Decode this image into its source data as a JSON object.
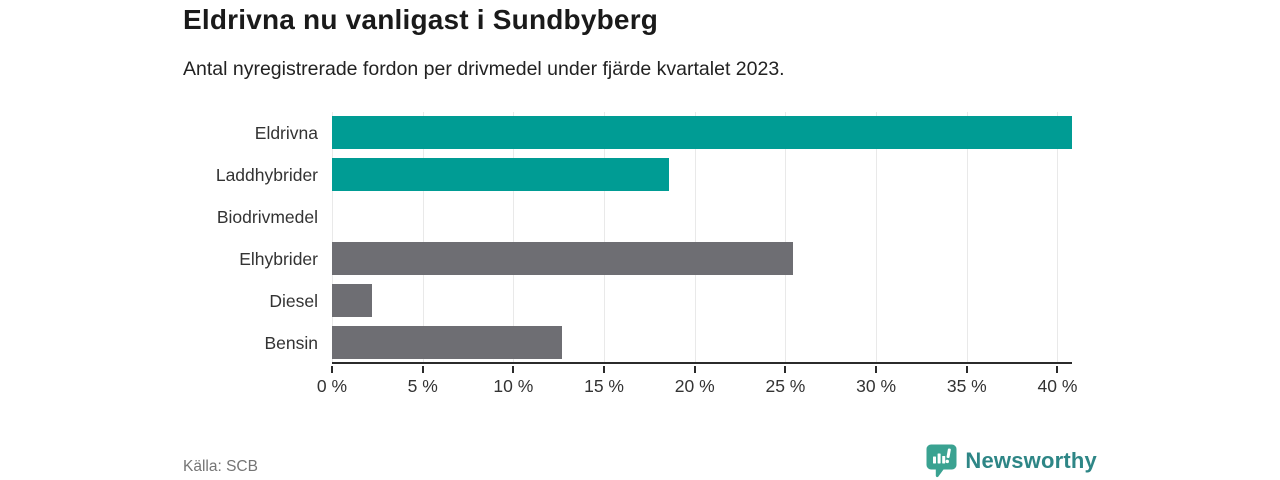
{
  "header": {
    "title": "Eldrivna nu vanligast i Sundbyberg",
    "subtitle": "Antal nyregistrerade fordon per drivmedel under fjärde kvartalet 2023."
  },
  "chart_data": {
    "type": "bar",
    "orientation": "horizontal",
    "title": "Eldrivna nu vanligast i Sundbyberg",
    "subtitle": "Antal nyregistrerade fordon per drivmedel under fjärde kvartalet 2023.",
    "categories": [
      "Eldrivna",
      "Laddhybrider",
      "Biodrivmedel",
      "Elhybrider",
      "Diesel",
      "Bensin"
    ],
    "values": [
      40.8,
      18.6,
      0,
      25.4,
      2.2,
      12.7
    ],
    "unit": "%",
    "bar_colors": [
      "#009c94",
      "#009c94",
      "#009c94",
      "#6e6e73",
      "#6e6e73",
      "#6e6e73"
    ],
    "xlabel": "",
    "ylabel": "",
    "xlim": [
      0,
      40.8
    ],
    "xticks": [
      0,
      5,
      10,
      15,
      20,
      25,
      30,
      35,
      40
    ],
    "xtick_labels": [
      "0 %",
      "5 %",
      "10 %",
      "15 %",
      "20 %",
      "25 %",
      "30 %",
      "35 %",
      "40 %"
    ],
    "grid": true,
    "legend": false
  },
  "footer": {
    "source": "Källa: SCB",
    "brand": "Newsworthy"
  },
  "colors": {
    "accent_teal": "#009c94",
    "neutral_gray": "#6e6e73",
    "axis": "#2b2b2b",
    "gridline": "#e9e9e9",
    "title_text": "#1a1a1a",
    "body_text": "#333333",
    "muted_text": "#757575",
    "brand_text": "#2e8686",
    "brand_icon": "#3aa291",
    "background": "#ffffff"
  }
}
